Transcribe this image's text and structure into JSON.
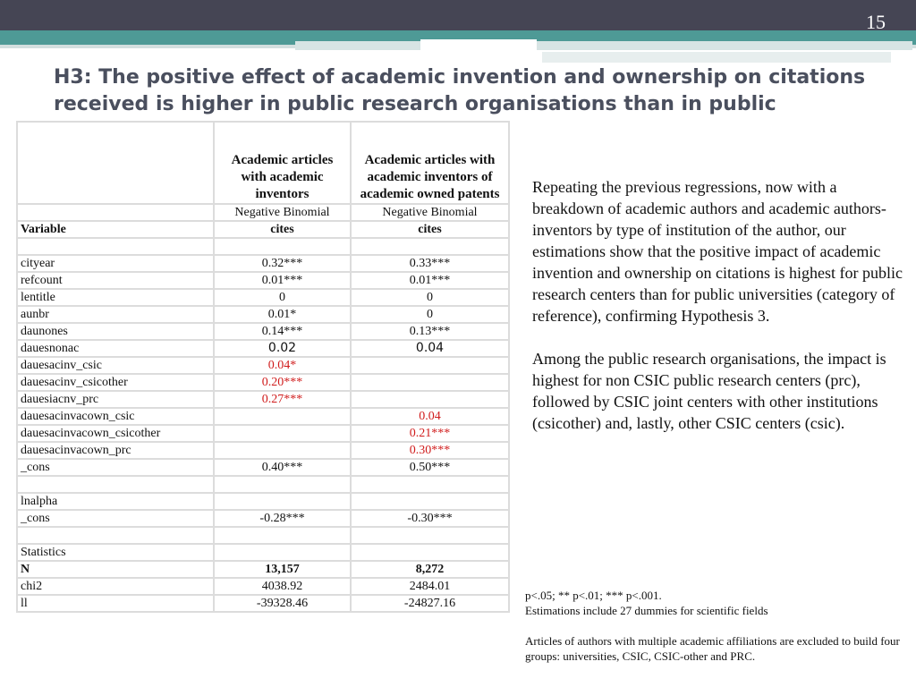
{
  "slide": {
    "page_number": "15",
    "title": "H3: The positive effect of academic invention and ownership on citations received is higher in public research organisations than in public universities"
  },
  "table": {
    "col1_header": "Academic articles with academic inventors",
    "col2_header": "Academic articles with academic inventors of academic owned patents",
    "model_row": {
      "col1": "Negative Binomial",
      "col2": "Negative Binomial"
    },
    "dep_row": {
      "label": "Variable",
      "col1": "cites",
      "col2": "cites"
    },
    "rows": {
      "cityear": {
        "label": "cityear",
        "col1": "0.32***",
        "col2": "0.33***"
      },
      "refcount": {
        "label": "refcount",
        "col1": "0.01***",
        "col2": "0.01***"
      },
      "lentitle": {
        "label": "lentitle",
        "col1": "0",
        "col2": "0"
      },
      "aunbr": {
        "label": "aunbr",
        "col1": "0.01*",
        "col2": "0"
      },
      "daunones": {
        "label": "daunones",
        "col1": "0.14***",
        "col2": "0.13***"
      },
      "dauesnonac": {
        "label": "dauesnonac",
        "col1": "0.02",
        "col2": "0.04"
      },
      "inv_csic": {
        "label": "dauesacinv_csic",
        "col1": "0.04*",
        "col2": ""
      },
      "inv_csicother": {
        "label": "dauesacinv_csicother",
        "col1": "0.20***",
        "col2": ""
      },
      "inv_prc": {
        "label": "dauesiacnv_prc",
        "col1": "0.27***",
        "col2": ""
      },
      "own_csic": {
        "label": "dauesacinvacown_csic",
        "col1": "",
        "col2": "0.04"
      },
      "own_csicother": {
        "label": "dauesacinvacown_csicother",
        "col1": "",
        "col2": "0.21***"
      },
      "own_prc": {
        "label": "dauesacinvacown_prc",
        "col1": "",
        "col2": "0.30***"
      },
      "cons1": {
        "label": "_cons",
        "col1": "0.40***",
        "col2": "0.50***"
      },
      "lnalpha": {
        "label": "lnalpha",
        "col1": "",
        "col2": ""
      },
      "cons2": {
        "label": "_cons",
        "col1": "-0.28***",
        "col2": "-0.30***"
      },
      "statistics": {
        "label": "Statistics",
        "col1": "",
        "col2": ""
      },
      "n": {
        "label": "N",
        "col1": "13,157",
        "col2": "8,272"
      },
      "chi2": {
        "label": "chi2",
        "col1": "4038.92",
        "col2": "2484.01"
      },
      "ll": {
        "label": "ll",
        "col1": "-39328.46",
        "col2": "-24827.16"
      }
    }
  },
  "right_text": {
    "paragraph1": "Repeating the previous regressions, now with a breakdown of academic authors and academic authors-inventors by type of institution of the author, our estimations show that the positive impact of academic invention and ownership on citations is highest for public research centers than for public universities (category of reference), confirming Hypothesis 3.",
    "paragraph2": "Among the public research organisations, the impact is highest for non CSIC public research centers (prc), followed by CSIC joint centers with other institutions (csicother) and, lastly, other CSIC centers (csic)."
  },
  "notes": {
    "significance": "p<.05; ** p<.01; *** p<.001.",
    "dummies": "Estimations include 27 dummies for scientific fields",
    "exclusion": "Articles of authors with multiple academic affiliations are excluded to build four groups: universities, CSIC, CSIC-other and PRC."
  },
  "colors": {
    "header_bar": "#454554",
    "teal_bar": "#4e9a96",
    "title": "#4a4f5e",
    "highlight": "#d01c1c"
  }
}
